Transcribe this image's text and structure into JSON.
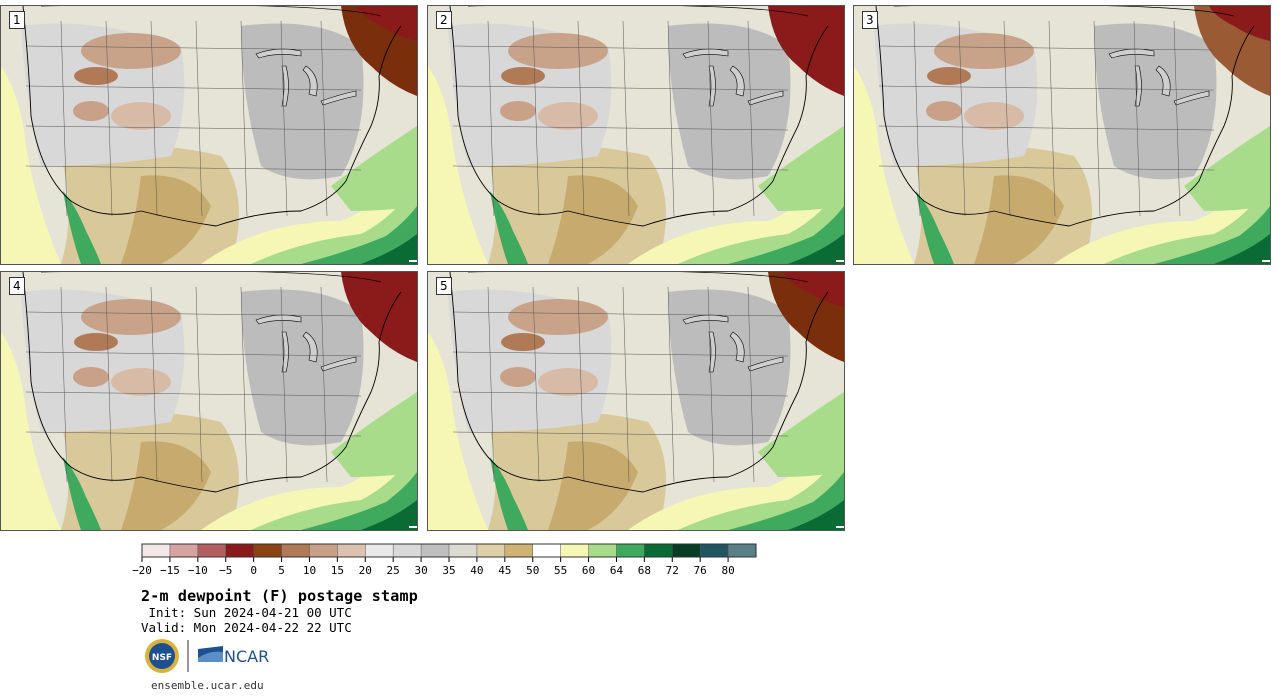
{
  "panels": [
    {
      "label": "1",
      "north_dry": "#7a2e0c",
      "east_dry": true
    },
    {
      "label": "2",
      "north_dry": "#8b1a1a",
      "east_dry": true
    },
    {
      "label": "3",
      "north_dry": "#9a5a34",
      "east_dry": false
    },
    {
      "label": "4",
      "north_dry": "#8b1a1a",
      "east_dry": true
    },
    {
      "label": "5",
      "north_dry": "#7a2e0c",
      "east_dry": true
    }
  ],
  "legend": {
    "colors": [
      "#f3e7e7",
      "#d6a3a3",
      "#b35f5f",
      "#8b1a1a",
      "#8a4413",
      "#b07a57",
      "#c9a088",
      "#dcc1b0",
      "#e9e9e9",
      "#d9d9d9",
      "#bfbfbf",
      "#dcdbd0",
      "#ddd0a8",
      "#cfb276",
      "#ffffff",
      "#f7f7b5",
      "#a8dc8a",
      "#3fa95e",
      "#0a6b35",
      "#073d24",
      "#1f5662",
      "#5a7f86"
    ],
    "ticks": [
      "−20",
      "−15",
      "−10",
      "−5",
      "0",
      "5",
      "10",
      "15",
      "20",
      "25",
      "30",
      "35",
      "40",
      "45",
      "50",
      "55",
      "60",
      "64",
      "68",
      "72",
      "76",
      "80"
    ]
  },
  "title": "2-m dewpoint (F) postage stamp",
  "init": " Init: Sun 2024-04-21 00 UTC",
  "valid": "Valid: Mon 2024-04-22 22 UTC",
  "logos": {
    "nsf": "NSF",
    "ncar": "NCAR"
  },
  "website": "ensemble.ucar.edu"
}
